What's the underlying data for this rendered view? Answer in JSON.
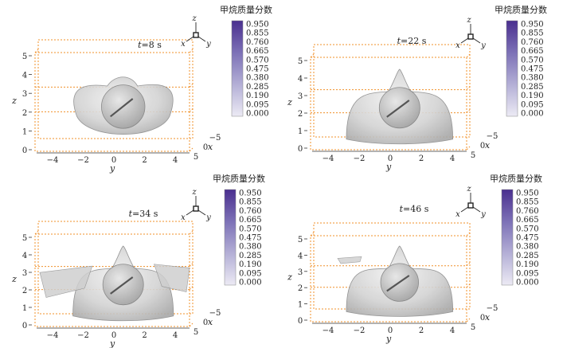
{
  "colorbar": {
    "title": "甲烷质量分数",
    "ticks": [
      "0.950",
      "0.855",
      "0.760",
      "0.665",
      "0.570",
      "0.475",
      "0.380",
      "0.285",
      "0.190",
      "0.095",
      "0.000"
    ],
    "colors": {
      "top": "#4a2f8f",
      "bottom": "#eceaf4"
    }
  },
  "axis_triad": {
    "z": "z",
    "x": "x",
    "y": "y"
  },
  "box_color": "#f0902a",
  "panels": [
    {
      "id": "p1",
      "time_var": "t",
      "time_value": "=8 s",
      "z_label": "z",
      "y_label": "y",
      "x_label": "x",
      "z_ticks": [
        "0",
        "1",
        "2",
        "3",
        "4",
        "5"
      ],
      "y_ticks": [
        "−4",
        "−2",
        "0",
        "2",
        "4"
      ],
      "x_ticks": [
        "5",
        "0",
        "−5"
      ]
    },
    {
      "id": "p2",
      "time_var": "t",
      "time_value": "=22 s",
      "z_label": "z",
      "y_label": "y",
      "x_label": "x",
      "z_ticks": [
        "0",
        "1",
        "2",
        "3",
        "4",
        "5"
      ],
      "y_ticks": [
        "−4",
        "−2",
        "0",
        "2",
        "4"
      ],
      "x_ticks": [
        "5",
        "0",
        "−5"
      ]
    },
    {
      "id": "p3",
      "time_var": "t",
      "time_value": "=34 s",
      "z_label": "z",
      "y_label": "y",
      "x_label": "x",
      "z_ticks": [
        "0",
        "1",
        "2",
        "3",
        "4",
        "5"
      ],
      "y_ticks": [
        "−4",
        "−2",
        "0",
        "2",
        "4"
      ],
      "x_ticks": [
        "5",
        "0",
        "−5"
      ]
    },
    {
      "id": "p4",
      "time_var": "t",
      "time_value": "=46 s",
      "z_label": "z",
      "y_label": "y",
      "x_label": "x",
      "z_ticks": [
        "0",
        "1",
        "2",
        "3",
        "4",
        "5"
      ],
      "y_ticks": [
        "−4",
        "−2",
        "0",
        "2",
        "4"
      ],
      "x_ticks": [
        "5",
        "0",
        "−5"
      ]
    }
  ]
}
